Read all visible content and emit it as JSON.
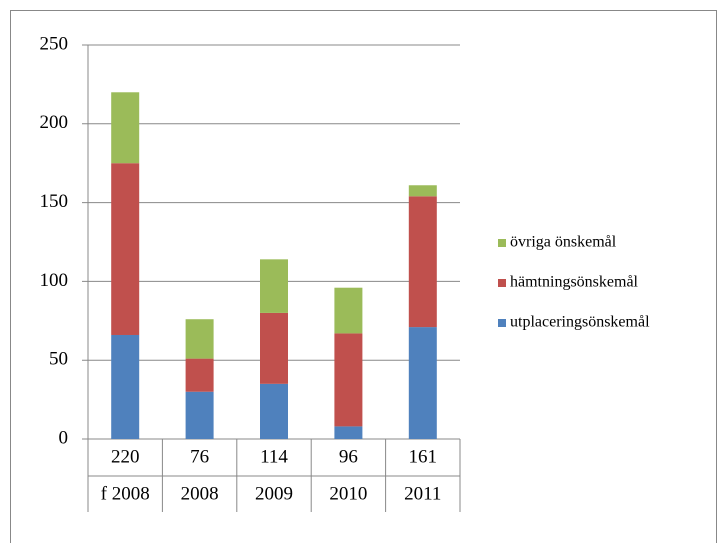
{
  "chart_data": {
    "type": "stacked_bar",
    "categories": [
      "f 2008",
      "2008",
      "2009",
      "2010",
      "2011"
    ],
    "totals": [
      220,
      76,
      114,
      96,
      161
    ],
    "series": [
      {
        "name": "utplaceringsönskemål",
        "color": "#4f81bd",
        "values": [
          66,
          30,
          35,
          8,
          71
        ]
      },
      {
        "name": "hämtningsönskemål",
        "color": "#c0504d",
        "values": [
          109,
          21,
          45,
          59,
          83
        ]
      },
      {
        "name": "övriga önskemål",
        "color": "#9bbb59",
        "values": [
          45,
          25,
          34,
          29,
          7
        ]
      }
    ],
    "ylim": [
      0,
      250
    ],
    "yticks": [
      0,
      50,
      100,
      150,
      200,
      250
    ],
    "grid": true,
    "legend": "right"
  }
}
